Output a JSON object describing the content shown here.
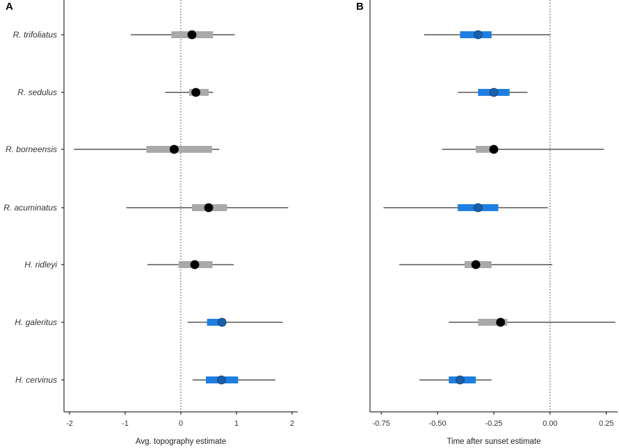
{
  "colors": {
    "significant": "#1f7fe0",
    "nonsignificant": "#a9a9a9",
    "point_sig": "#1a5fa8",
    "point_nonsig": "#000000"
  },
  "chart_data": [
    {
      "type": "forest",
      "panel_label": "A",
      "xlabel": "Avg. topography estimate",
      "xlim": [
        -2.1,
        2.1
      ],
      "xticks": [
        -2,
        -1,
        0,
        1,
        2
      ],
      "xtick_labels": [
        "-2",
        "-1",
        "0",
        "1",
        "2"
      ],
      "reference_line": 0,
      "categories": [
        "R. trifoliatus",
        "R. sedulus",
        "R. borneensis",
        "R. acuminatus",
        "H. ridleyi",
        "H. galeritus",
        "H. cervinus"
      ],
      "estimates": [
        {
          "species": "R. trifoliatus",
          "estimate": 0.2,
          "inner": [
            -0.17,
            0.58
          ],
          "outer": [
            -0.9,
            0.97
          ],
          "significant": false
        },
        {
          "species": "R. sedulus",
          "estimate": 0.27,
          "inner": [
            0.15,
            0.5
          ],
          "outer": [
            -0.28,
            0.58
          ],
          "significant": false
        },
        {
          "species": "R. borneensis",
          "estimate": -0.12,
          "inner": [
            -0.62,
            0.56
          ],
          "outer": [
            -1.92,
            0.69
          ],
          "significant": false
        },
        {
          "species": "R. acuminatus",
          "estimate": 0.5,
          "inner": [
            0.2,
            0.83
          ],
          "outer": [
            -0.98,
            1.93
          ],
          "significant": false
        },
        {
          "species": "H. ridleyi",
          "estimate": 0.25,
          "inner": [
            -0.04,
            0.57
          ],
          "outer": [
            -0.6,
            0.95
          ],
          "significant": false
        },
        {
          "species": "H. galeritus",
          "estimate": 0.74,
          "inner": [
            0.47,
            0.8
          ],
          "outer": [
            0.12,
            1.83
          ],
          "significant": true
        },
        {
          "species": "H. cervinus",
          "estimate": 0.73,
          "inner": [
            0.45,
            1.03
          ],
          "outer": [
            0.21,
            1.7
          ],
          "significant": true
        }
      ]
    },
    {
      "type": "forest",
      "panel_label": "B",
      "xlabel": "Time after sunset estimate",
      "xlim": [
        -0.8,
        0.3
      ],
      "xticks": [
        -0.75,
        -0.5,
        -0.25,
        0.0,
        0.25
      ],
      "xtick_labels": [
        "-0.75",
        "-0.50",
        "-0.25",
        "0.00",
        "0.25"
      ],
      "reference_line": 0,
      "categories": [
        "R. trifoliatus",
        "R. sedulus",
        "R. borneensis",
        "R. acuminatus",
        "H. ridleyi",
        "H. galeritus",
        "H. cervinus"
      ],
      "estimates": [
        {
          "species": "R. trifoliatus",
          "estimate": -0.32,
          "inner": [
            -0.4,
            -0.26
          ],
          "outer": [
            -0.56,
            0.0
          ],
          "significant": true
        },
        {
          "species": "R. sedulus",
          "estimate": -0.25,
          "inner": [
            -0.32,
            -0.18
          ],
          "outer": [
            -0.41,
            -0.1
          ],
          "significant": true
        },
        {
          "species": "R. borneensis",
          "estimate": -0.25,
          "inner": [
            -0.33,
            -0.25
          ],
          "outer": [
            -0.48,
            0.24
          ],
          "significant": false
        },
        {
          "species": "R. acuminatus",
          "estimate": -0.32,
          "inner": [
            -0.41,
            -0.23
          ],
          "outer": [
            -0.74,
            -0.01
          ],
          "significant": true
        },
        {
          "species": "H. ridleyi",
          "estimate": -0.33,
          "inner": [
            -0.38,
            -0.26
          ],
          "outer": [
            -0.67,
            0.01
          ],
          "significant": false
        },
        {
          "species": "H. galeritus",
          "estimate": -0.22,
          "inner": [
            -0.32,
            -0.19
          ],
          "outer": [
            -0.45,
            0.29
          ],
          "significant": false
        },
        {
          "species": "H. cervinus",
          "estimate": -0.4,
          "inner": [
            -0.45,
            -0.33
          ],
          "outer": [
            -0.58,
            -0.26
          ],
          "significant": true
        }
      ]
    }
  ]
}
